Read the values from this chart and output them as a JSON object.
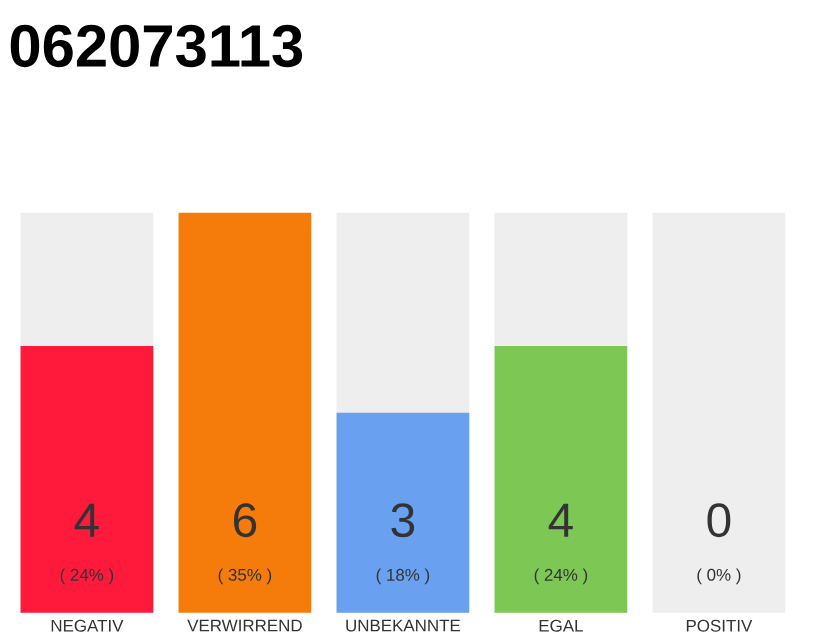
{
  "chart_data": {
    "type": "bar",
    "title": "062073113",
    "categories": [
      "NEGATIV",
      "VERWIRREND",
      "UNBEKANNTE",
      "EGAL",
      "POSITIV"
    ],
    "values": [
      4,
      6,
      3,
      4,
      0
    ],
    "colors": [
      "#ff1a3c",
      "#f57c0a",
      "#6aa0f0",
      "#7dc855",
      "#cccccc"
    ],
    "ylim": [
      0,
      6
    ],
    "data_labels": true,
    "bands": [
      {
        "axis": "x",
        "from": "NEGATIV",
        "to": "NEGATIV",
        "color": "#eeeeee"
      },
      {
        "axis": "x",
        "from": "UNBEKANNTE",
        "to": "UNBEKANNTE",
        "color": "#eeeeee"
      },
      {
        "axis": "x",
        "from": "EGAL",
        "to": "EGAL",
        "color": "#eeeeee"
      },
      {
        "axis": "x",
        "from": "POSITIV",
        "to": "POSITIV",
        "color": "#eeeeee"
      }
    ],
    "annotations": [
      "( 24% )",
      "( 35% )",
      "( 18% )",
      "( 24% )",
      "( 0% )"
    ]
  }
}
